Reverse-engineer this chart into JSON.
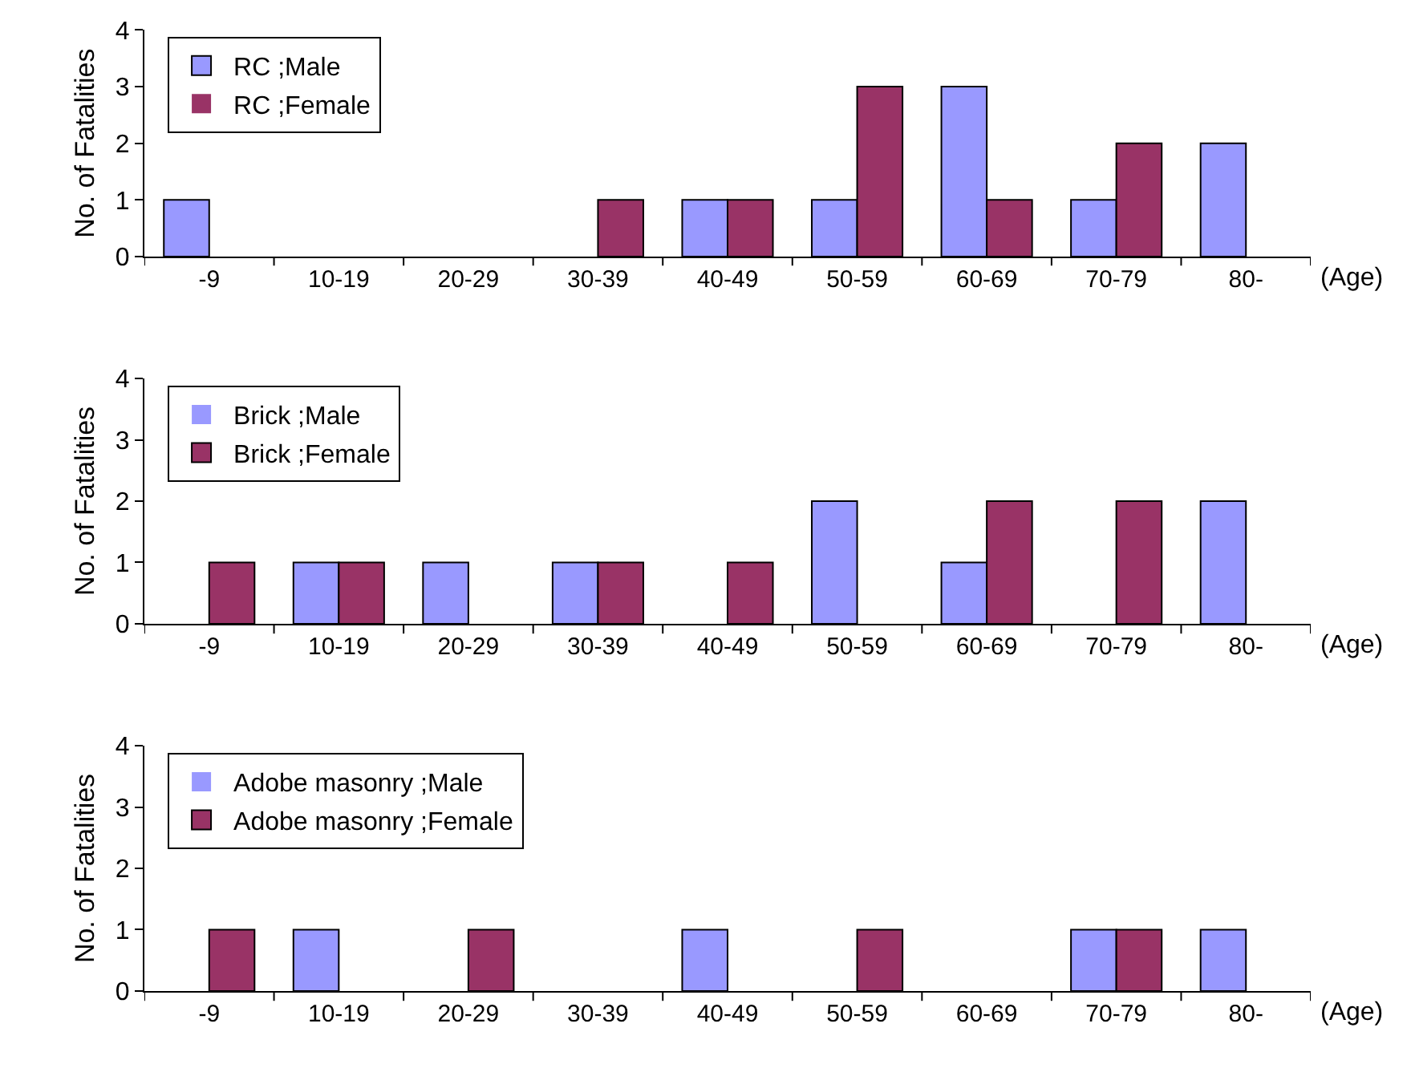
{
  "chart_data": [
    {
      "type": "bar",
      "ylabel": "No. of Fatalities",
      "xlabel": "(Age)",
      "categories": [
        "-9",
        "10-19",
        "20-29",
        "30-39",
        "40-49",
        "50-59",
        "60-69",
        "70-79",
        "80-"
      ],
      "series": [
        {
          "name": "RC ;Male",
          "color": "#9999ff",
          "values": [
            1,
            0,
            0,
            0,
            1,
            1,
            3,
            1,
            2
          ]
        },
        {
          "name": "RC ;Female",
          "color": "#993366",
          "values": [
            0,
            0,
            0,
            1,
            1,
            3,
            1,
            2,
            0
          ]
        }
      ],
      "ylim": [
        0,
        4
      ],
      "yticks": [
        0,
        1,
        2,
        3,
        4
      ],
      "legend": "top left",
      "grid": false
    },
    {
      "type": "bar",
      "ylabel": "No. of Fatalities",
      "xlabel": "(Age)",
      "categories": [
        "-9",
        "10-19",
        "20-29",
        "30-39",
        "40-49",
        "50-59",
        "60-69",
        "70-79",
        "80-"
      ],
      "series": [
        {
          "name": "Brick ;Male",
          "color": "#9999ff",
          "values": [
            0,
            1,
            1,
            1,
            0,
            2,
            1,
            0,
            2
          ]
        },
        {
          "name": "Brick ;Female",
          "color": "#993366",
          "values": [
            1,
            1,
            0,
            1,
            1,
            0,
            2,
            2,
            0
          ]
        }
      ],
      "ylim": [
        0,
        4
      ],
      "yticks": [
        0,
        1,
        2,
        3,
        4
      ],
      "legend": "top left",
      "grid": false
    },
    {
      "type": "bar",
      "ylabel": "No. of Fatalities",
      "xlabel": "(Age)",
      "categories": [
        "-9",
        "10-19",
        "20-29",
        "30-39",
        "40-49",
        "50-59",
        "60-69",
        "70-79",
        "80-"
      ],
      "series": [
        {
          "name": "Adobe masonry ;Male",
          "color": "#9999ff",
          "values": [
            0,
            1,
            0,
            0,
            1,
            0,
            0,
            1,
            1
          ]
        },
        {
          "name": "Adobe masonry ;Female",
          "color": "#993366",
          "values": [
            1,
            0,
            1,
            0,
            0,
            1,
            0,
            1,
            0
          ]
        }
      ],
      "ylim": [
        0,
        4
      ],
      "yticks": [
        0,
        1,
        2,
        3,
        4
      ],
      "legend": "top left",
      "grid": false
    }
  ]
}
